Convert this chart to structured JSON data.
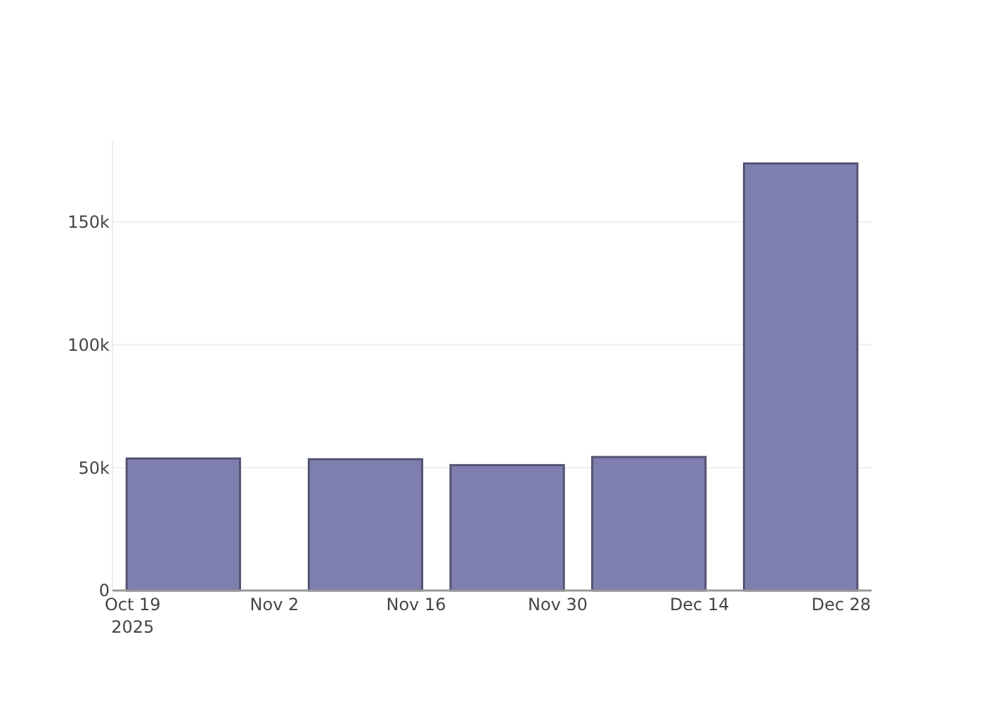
{
  "chart_data": {
    "type": "bar",
    "x": [
      "2025-10-24",
      "2025-11-11",
      "2025-11-25",
      "2025-12-09",
      "2025-12-24"
    ],
    "values": [
      53700,
      53400,
      51000,
      54300,
      173700
    ],
    "color": "#7f7faf",
    "xlim": [
      "2025-10-17",
      "2025-12-31"
    ],
    "xticks": [
      {
        "value": "2025-10-19",
        "label": "Oct 19\n2025"
      },
      {
        "value": "2025-11-02",
        "label": "Nov 2"
      },
      {
        "value": "2025-11-16",
        "label": "Nov 16"
      },
      {
        "value": "2025-11-30",
        "label": "Nov 30"
      },
      {
        "value": "2025-12-14",
        "label": "Dec 14"
      },
      {
        "value": "2025-12-28",
        "label": "Dec 28"
      }
    ],
    "ylim": [
      0,
      183000
    ],
    "yticks": [
      {
        "value": 0,
        "label": "0"
      },
      {
        "value": 50000,
        "label": "50k"
      },
      {
        "value": 100000,
        "label": "100k"
      },
      {
        "value": 150000,
        "label": "150k"
      }
    ],
    "grid": "y"
  }
}
